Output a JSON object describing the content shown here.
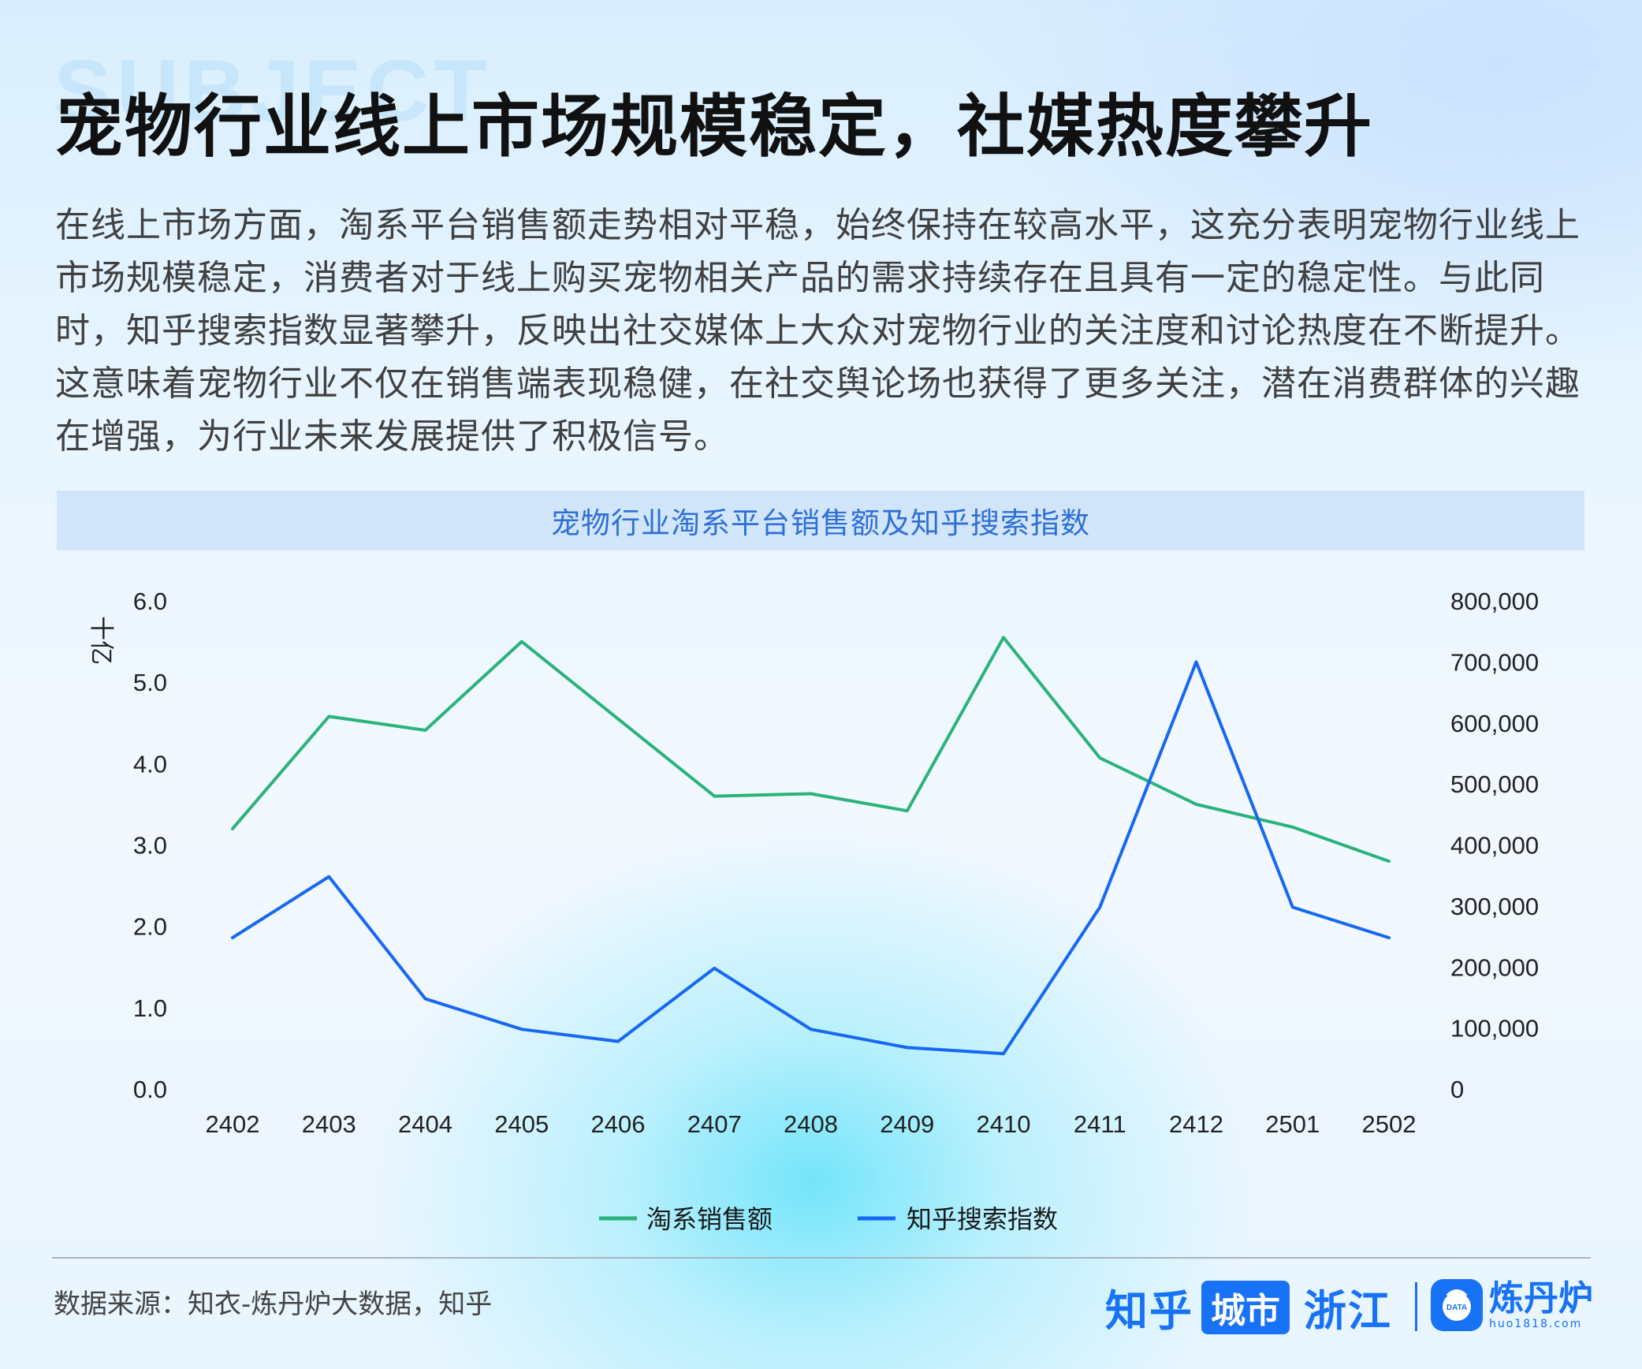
{
  "header": {
    "background_word": "SUBJECT",
    "title": "宠物行业线上市场规模稳定，社媒热度攀升",
    "intro": "在线上市场方面，淘系平台销售额走势相对平稳，始终保持在较高水平，这充分表明宠物行业线上市场规模稳定，消费者对于线上购买宠物相关产品的需求持续存在且具有一定的稳定性。与此同时，知乎搜索指数显著攀升，反映出社交媒体上大众对宠物行业的关注度和讨论热度在不断提升。这意味着宠物行业不仅在销售端表现稳健，在社交舆论场也获得了更多关注，潜在消费群体的兴趣在增强，为行业未来发展提供了积极信号。"
  },
  "chart_data": {
    "type": "line",
    "title": "宠物行业淘系平台销售额及知乎搜索指数",
    "categories": [
      "2402",
      "2403",
      "2404",
      "2405",
      "2406",
      "2407",
      "2408",
      "2409",
      "2410",
      "2411",
      "2412",
      "2501",
      "2502"
    ],
    "y_left_unit": "十亿",
    "y_left_range": [
      0,
      6
    ],
    "y_left_ticks": [
      "0.0",
      "1.0",
      "2.0",
      "3.0",
      "4.0",
      "5.0",
      "6.0"
    ],
    "y_right_range": [
      0,
      800000
    ],
    "y_right_ticks": [
      "0",
      "100,000",
      "200,000",
      "300,000",
      "400,000",
      "500,000",
      "600,000",
      "700,000",
      "800,000"
    ],
    "series": [
      {
        "name": "淘系销售额",
        "axis": "left",
        "color": "#2ab37a",
        "values": [
          3.2,
          4.58,
          4.41,
          5.5,
          4.55,
          3.6,
          3.63,
          3.42,
          5.55,
          4.07,
          3.5,
          3.22,
          2.8
        ]
      },
      {
        "name": "知乎搜索指数",
        "axis": "right",
        "color": "#1668f2",
        "values": [
          248000,
          348000,
          148000,
          98000,
          78000,
          198000,
          98000,
          68000,
          58000,
          298000,
          700000,
          298000,
          248000
        ]
      }
    ],
    "grid": false,
    "legend_position": "bottom-center"
  },
  "footer": {
    "source": "数据来源：知衣-炼丹炉大数据，知乎",
    "brand_zhihu": "知乎",
    "brand_city": "城市",
    "brand_region": "浙江",
    "brand_ldl": "炼丹炉",
    "brand_ldl_domain": "huo1818.com",
    "brand_ldl_icon_text": "DATA"
  }
}
